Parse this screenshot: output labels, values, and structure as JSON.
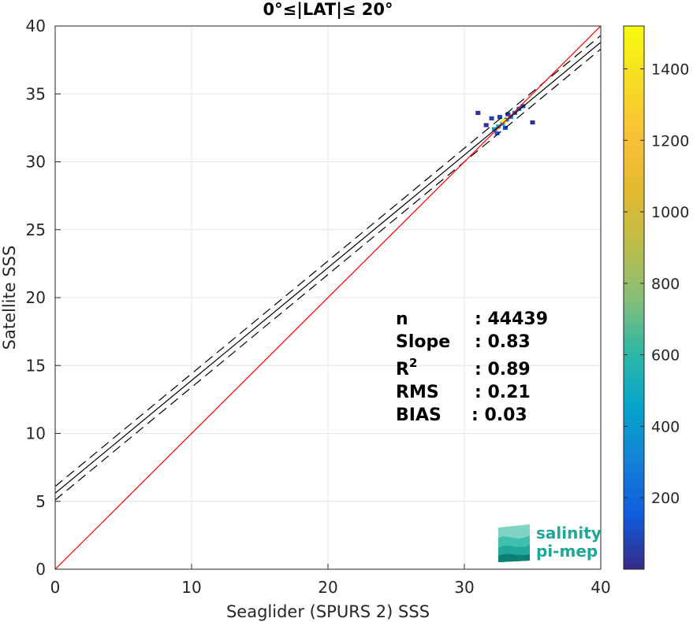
{
  "chart_data": {
    "type": "heatmap",
    "title": "0°≤|LAT|≤ 20°",
    "xlabel": "Seaglider (SPURS 2) SSS",
    "ylabel": "Satellite SSS",
    "xlim": [
      0,
      40
    ],
    "ylim": [
      0,
      40
    ],
    "xticks": [
      "0",
      "10",
      "20",
      "30",
      "40"
    ],
    "yticks": [
      "0",
      "5",
      "10",
      "15",
      "20",
      "25",
      "30",
      "35",
      "40"
    ],
    "grid": true,
    "colorbar": {
      "min": 0,
      "max": 1520,
      "ticks": [
        "200",
        "400",
        "600",
        "800",
        "1000",
        "1200",
        "1400"
      ],
      "tick_values": [
        200,
        400,
        600,
        800,
        1000,
        1200,
        1400
      ],
      "colormap": "parula"
    },
    "lines": {
      "identity": {
        "slope": 1,
        "intercept": 0,
        "color": "#ff0000"
      },
      "fit": {
        "slope": 0.83,
        "intercept": 5.6,
        "color": "#000000"
      },
      "fit_upper": {
        "slope": 0.83,
        "intercept": 6.1,
        "color": "#000000",
        "style": "dashed"
      },
      "fit_lower": {
        "slope": 0.83,
        "intercept": 5.1,
        "color": "#000000",
        "style": "dashed"
      }
    },
    "density_cells": [
      {
        "x": 32.2,
        "y": 32.4,
        "count": 400
      },
      {
        "x": 32.5,
        "y": 32.6,
        "count": 500
      },
      {
        "x": 32.8,
        "y": 32.8,
        "count": 450
      },
      {
        "x": 33.1,
        "y": 33.1,
        "count": 350
      },
      {
        "x": 33.4,
        "y": 33.3,
        "count": 300
      },
      {
        "x": 33.7,
        "y": 33.6,
        "count": 250
      },
      {
        "x": 34.0,
        "y": 33.9,
        "count": 200
      },
      {
        "x": 34.3,
        "y": 34.1,
        "count": 100
      },
      {
        "x": 32.0,
        "y": 33.2,
        "count": 60
      },
      {
        "x": 32.6,
        "y": 33.3,
        "count": 80
      },
      {
        "x": 31.0,
        "y": 33.6,
        "count": 40
      },
      {
        "x": 32.4,
        "y": 32.1,
        "count": 150
      },
      {
        "x": 33.0,
        "y": 32.5,
        "count": 120
      },
      {
        "x": 35.0,
        "y": 32.9,
        "count": 20
      },
      {
        "x": 31.6,
        "y": 32.7,
        "count": 30
      },
      {
        "x": 32.9,
        "y": 33.0,
        "count": 1500
      },
      {
        "x": 33.2,
        "y": 33.5,
        "count": 40
      }
    ]
  },
  "stats": [
    {
      "label": "n",
      "value": ": 44439"
    },
    {
      "label": "Slope",
      "value": ": 0.83"
    },
    {
      "label": "R",
      "sup": "2",
      "value": ": 0.89"
    },
    {
      "label": "RMS",
      "value": ": 0.21"
    },
    {
      "label": "BIAS",
      "value": ": 0.03"
    }
  ],
  "logo": {
    "line1": "salinity",
    "line2": "pi-mep"
  }
}
